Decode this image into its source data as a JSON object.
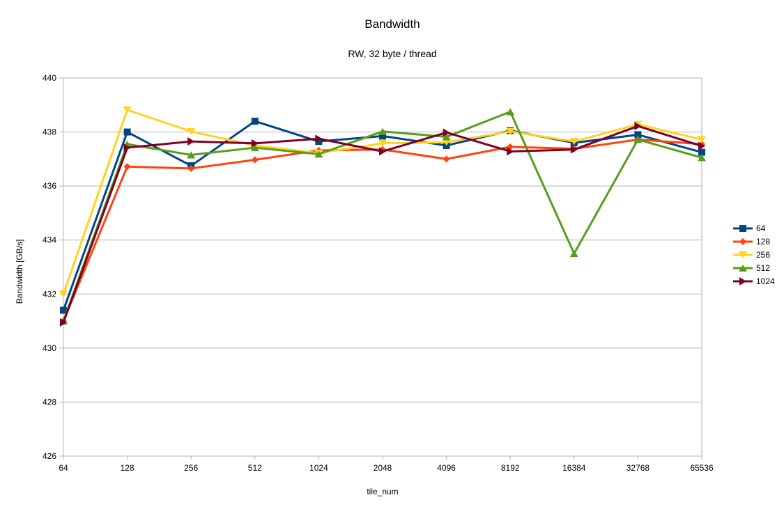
{
  "chart_data": {
    "type": "line",
    "title": "Bandwidth",
    "subtitle": "RW, 32 byte / thread",
    "xlabel": "tile_num",
    "ylabel": "Bandwidth [GB/s]",
    "categories": [
      "64",
      "128",
      "256",
      "512",
      "1024",
      "2048",
      "4096",
      "8192",
      "16384",
      "32768",
      "65536"
    ],
    "ylim": [
      426,
      440
    ],
    "yticks": [
      426,
      428,
      430,
      432,
      434,
      436,
      438,
      440
    ],
    "grid": true,
    "legend_position": "right",
    "series": [
      {
        "name": "64",
        "color": "#004586",
        "marker": "square",
        "values": [
          431.4,
          438.0,
          436.75,
          438.4,
          437.65,
          437.85,
          437.5,
          438.05,
          437.6,
          437.9,
          437.25
        ]
      },
      {
        "name": "128",
        "color": "#ff420e",
        "marker": "diamond",
        "values": [
          431.0,
          436.72,
          436.65,
          436.97,
          437.32,
          437.35,
          437.0,
          437.45,
          437.38,
          437.72,
          437.55
        ]
      },
      {
        "name": "256",
        "color": "#ffd320",
        "marker": "triangle-down",
        "values": [
          432.0,
          438.82,
          438.02,
          437.5,
          437.22,
          437.58,
          437.62,
          438.02,
          437.65,
          438.28,
          437.72
        ]
      },
      {
        "name": "512",
        "color": "#579d1c",
        "marker": "triangle-up",
        "values": [
          431.0,
          437.55,
          437.15,
          437.42,
          437.18,
          438.02,
          437.82,
          438.75,
          433.5,
          437.72,
          437.05
        ]
      },
      {
        "name": "1024",
        "color": "#7e0021",
        "marker": "triangle-right",
        "values": [
          430.95,
          437.42,
          437.65,
          437.58,
          437.75,
          437.28,
          437.98,
          437.28,
          437.35,
          438.22,
          437.48
        ]
      }
    ]
  }
}
